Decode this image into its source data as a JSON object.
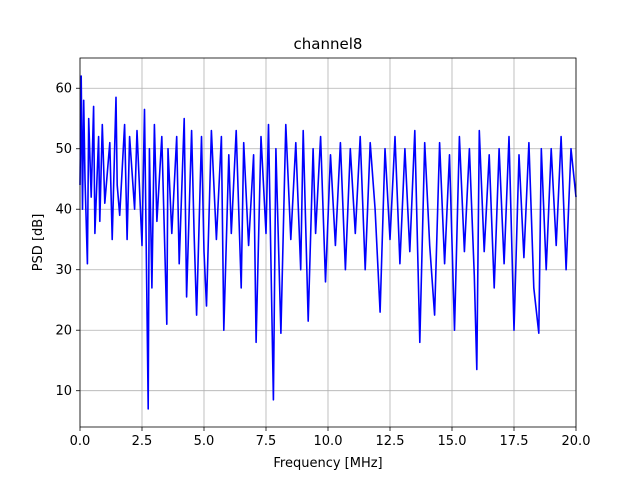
{
  "chart_data": {
    "type": "line",
    "title": "channel8",
    "xlabel": "Frequency [MHz]",
    "ylabel": "PSD [dB]",
    "xlim": [
      0,
      20
    ],
    "ylim": [
      4,
      65
    ],
    "grid": true,
    "x_ticks": [
      0.0,
      2.5,
      5.0,
      7.5,
      10.0,
      12.5,
      15.0,
      17.5,
      20.0
    ],
    "x_tick_labels": [
      "0.0",
      "2.5",
      "5.0",
      "7.5",
      "10.0",
      "12.5",
      "15.0",
      "17.5",
      "20.0"
    ],
    "y_ticks": [
      10,
      20,
      30,
      40,
      50,
      60
    ],
    "y_tick_labels": [
      "10",
      "20",
      "30",
      "40",
      "50",
      "60"
    ],
    "series": [
      {
        "color": "#0000ff",
        "x": [
          0.0,
          0.05,
          0.1,
          0.15,
          0.2,
          0.3,
          0.35,
          0.45,
          0.55,
          0.6,
          0.75,
          0.8,
          0.9,
          1.0,
          1.2,
          1.3,
          1.45,
          1.5,
          1.6,
          1.8,
          1.9,
          2.0,
          2.2,
          2.3,
          2.5,
          2.6,
          2.65,
          2.75,
          2.8,
          2.9,
          3.0,
          3.1,
          3.3,
          3.5,
          3.55,
          3.7,
          3.9,
          4.0,
          4.2,
          4.3,
          4.5,
          4.6,
          4.7,
          4.9,
          5.0,
          5.1,
          5.3,
          5.5,
          5.7,
          5.8,
          6.0,
          6.1,
          6.3,
          6.5,
          6.6,
          6.8,
          7.0,
          7.1,
          7.3,
          7.5,
          7.6,
          7.8,
          7.9,
          8.1,
          8.3,
          8.5,
          8.7,
          8.9,
          9.0,
          9.2,
          9.4,
          9.5,
          9.7,
          9.9,
          10.1,
          10.3,
          10.5,
          10.7,
          10.9,
          11.1,
          11.3,
          11.5,
          11.7,
          11.9,
          12.1,
          12.3,
          12.5,
          12.7,
          12.9,
          13.1,
          13.3,
          13.5,
          13.7,
          13.9,
          14.1,
          14.3,
          14.5,
          14.7,
          14.9,
          15.1,
          15.3,
          15.5,
          15.7,
          15.9,
          16.0,
          16.1,
          16.3,
          16.5,
          16.7,
          16.9,
          17.1,
          17.3,
          17.5,
          17.7,
          17.9,
          18.1,
          18.3,
          18.5,
          18.6,
          18.8,
          19.0,
          19.2,
          19.4,
          19.6,
          19.8,
          20.0
        ],
        "y": [
          44.0,
          62.0,
          40.0,
          58.0,
          45.0,
          31.0,
          55.0,
          42.0,
          57.0,
          36.0,
          52.0,
          38.0,
          54.0,
          41.0,
          51.0,
          35.0,
          58.5,
          44.0,
          39.0,
          54.0,
          35.0,
          52.0,
          40.0,
          53.0,
          34.0,
          56.5,
          41.0,
          7.0,
          50.0,
          27.0,
          54.0,
          38.0,
          52.0,
          21.0,
          50.0,
          36.0,
          52.0,
          31.0,
          55.0,
          25.5,
          53.0,
          36.0,
          22.5,
          52.0,
          33.0,
          24.0,
          53.0,
          35.0,
          52.0,
          20.0,
          49.0,
          36.0,
          53.0,
          27.0,
          51.0,
          34.0,
          49.0,
          18.0,
          52.0,
          36.0,
          54.0,
          8.5,
          50.0,
          19.5,
          54.0,
          35.0,
          51.0,
          30.0,
          53.0,
          21.5,
          50.0,
          36.0,
          52.0,
          28.0,
          49.0,
          34.0,
          51.0,
          30.0,
          50.0,
          36.0,
          52.0,
          30.0,
          51.0,
          40.0,
          23.0,
          50.0,
          35.0,
          52.0,
          31.0,
          50.0,
          33.0,
          53.0,
          18.0,
          51.0,
          34.0,
          22.5,
          51.0,
          31.0,
          49.0,
          20.0,
          52.0,
          33.0,
          50.0,
          29.0,
          13.5,
          53.0,
          33.0,
          49.0,
          27.0,
          50.0,
          31.0,
          52.0,
          20.0,
          49.0,
          32.0,
          51.0,
          27.0,
          19.5,
          50.0,
          30.0,
          50.0,
          34.0,
          52.0,
          30.0,
          50.0,
          42.0
        ]
      }
    ]
  }
}
